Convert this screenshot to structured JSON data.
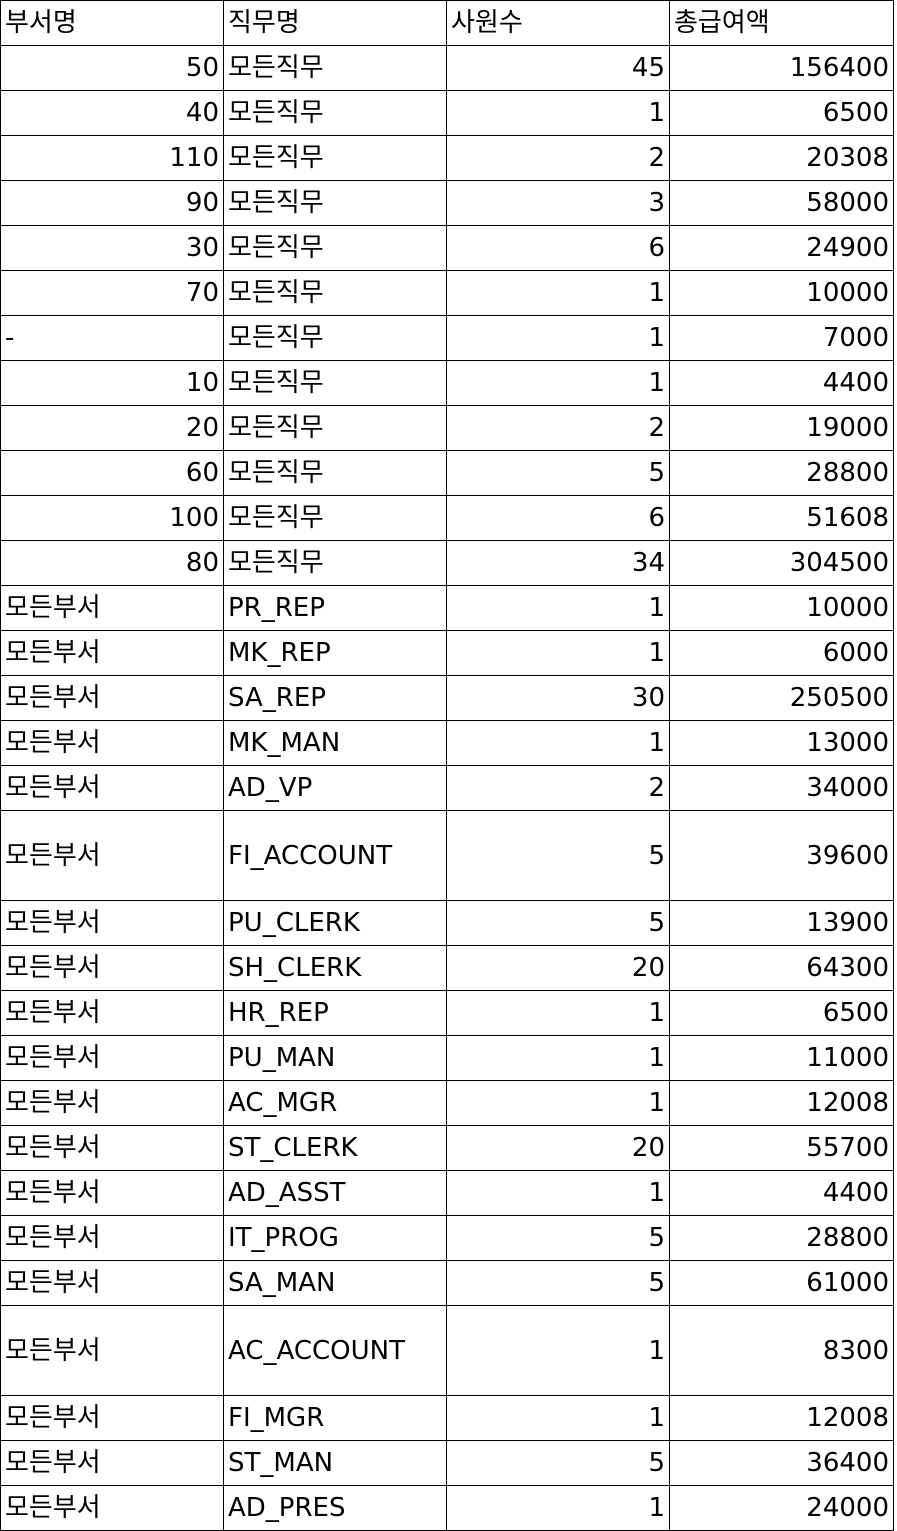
{
  "headers": [
    "부서명",
    "직무명",
    "사원수",
    "총급여액"
  ],
  "rows": [
    {
      "dept": "50",
      "job": "모든직무",
      "count": "45",
      "total": "156400"
    },
    {
      "dept": "40",
      "job": "모든직무",
      "count": "1",
      "total": "6500"
    },
    {
      "dept": "110",
      "job": "모든직무",
      "count": "2",
      "total": "20308"
    },
    {
      "dept": "90",
      "job": "모든직무",
      "count": "3",
      "total": "58000"
    },
    {
      "dept": "30",
      "job": "모든직무",
      "count": "6",
      "total": "24900"
    },
    {
      "dept": "70",
      "job": "모든직무",
      "count": "1",
      "total": "10000"
    },
    {
      "dept": "-",
      "job": "모든직무",
      "count": "1",
      "total": "7000"
    },
    {
      "dept": "10",
      "job": "모든직무",
      "count": "1",
      "total": "4400"
    },
    {
      "dept": "20",
      "job": "모든직무",
      "count": "2",
      "total": "19000"
    },
    {
      "dept": "60",
      "job": "모든직무",
      "count": "5",
      "total": "28800"
    },
    {
      "dept": "100",
      "job": "모든직무",
      "count": "6",
      "total": "51608"
    },
    {
      "dept": "80",
      "job": "모든직무",
      "count": "34",
      "total": "304500"
    },
    {
      "dept": "모든부서",
      "job": "PR_REP",
      "count": "1",
      "total": "10000"
    },
    {
      "dept": "모든부서",
      "job": "MK_REP",
      "count": "1",
      "total": "6000"
    },
    {
      "dept": "모든부서",
      "job": "SA_REP",
      "count": "30",
      "total": "250500"
    },
    {
      "dept": "모든부서",
      "job": "MK_MAN",
      "count": "1",
      "total": "13000"
    },
    {
      "dept": "모든부서",
      "job": "AD_VP",
      "count": "2",
      "total": "34000"
    },
    {
      "dept": "모든부서",
      "job": "FI_ACCOUNT",
      "count": "5",
      "total": "39600"
    },
    {
      "dept": "모든부서",
      "job": "PU_CLERK",
      "count": "5",
      "total": "13900"
    },
    {
      "dept": "모든부서",
      "job": "SH_CLERK",
      "count": "20",
      "total": "64300"
    },
    {
      "dept": "모든부서",
      "job": "HR_REP",
      "count": "1",
      "total": "6500"
    },
    {
      "dept": "모든부서",
      "job": "PU_MAN",
      "count": "1",
      "total": "11000"
    },
    {
      "dept": "모든부서",
      "job": "AC_MGR",
      "count": "1",
      "total": "12008"
    },
    {
      "dept": "모든부서",
      "job": "ST_CLERK",
      "count": "20",
      "total": "55700"
    },
    {
      "dept": "모든부서",
      "job": "AD_ASST",
      "count": "1",
      "total": "4400"
    },
    {
      "dept": "모든부서",
      "job": "IT_PROG",
      "count": "5",
      "total": "28800"
    },
    {
      "dept": "모든부서",
      "job": "SA_MAN",
      "count": "5",
      "total": "61000"
    },
    {
      "dept": "모든부서",
      "job": "AC_ACCOUNT",
      "count": "1",
      "total": "8300"
    },
    {
      "dept": "모든부서",
      "job": "FI_MGR",
      "count": "1",
      "total": "12008"
    },
    {
      "dept": "모든부서",
      "job": "ST_MAN",
      "count": "5",
      "total": "36400"
    },
    {
      "dept": "모든부서",
      "job": "AD_PRES",
      "count": "1",
      "total": "24000"
    }
  ]
}
